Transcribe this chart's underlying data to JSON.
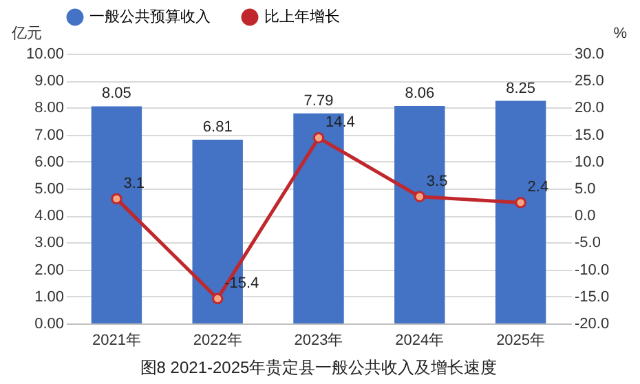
{
  "chart_data": {
    "type": "bar",
    "title": "图8 2021-2025年贵定县一般公共收入及增长速度",
    "ylabel": "亿元",
    "y2label": "%",
    "categories": [
      "2021年",
      "2022年",
      "2023年",
      "2024年",
      "2025年"
    ],
    "series": [
      {
        "name": "一般公共预算收入",
        "color": "#4472c4",
        "values": [
          8.05,
          6.81,
          7.79,
          8.06,
          8.25
        ]
      },
      {
        "name": "比上年增长",
        "type": "line",
        "axis": "y2",
        "color": "#c0282d",
        "marker": "circle",
        "values": [
          3.1,
          -15.4,
          14.4,
          3.5,
          2.4
        ]
      }
    ],
    "ylim": [
      0,
      10
    ],
    "yticks": [
      {
        "value": 0,
        "label": "0.00"
      },
      {
        "value": 1,
        "label": "1.00"
      },
      {
        "value": 2,
        "label": "2.00"
      },
      {
        "value": 3,
        "label": "3.00"
      },
      {
        "value": 4,
        "label": "4.00"
      },
      {
        "value": 5,
        "label": "5.00"
      },
      {
        "value": 6,
        "label": "6.00"
      },
      {
        "value": 7,
        "label": "7.00"
      },
      {
        "value": 8,
        "label": "8.00"
      },
      {
        "value": 9,
        "label": "9.00"
      },
      {
        "value": 10,
        "label": "10.00"
      }
    ],
    "y2lim": [
      -20,
      30
    ],
    "y2ticks": [
      {
        "value": -20,
        "label": "-20.0"
      },
      {
        "value": -15,
        "label": "-15.0"
      },
      {
        "value": -10,
        "label": "-10.0"
      },
      {
        "value": -5,
        "label": "-5.0"
      },
      {
        "value": 0,
        "label": "0.0"
      },
      {
        "value": 5,
        "label": "5.0"
      },
      {
        "value": 10,
        "label": "10.0"
      },
      {
        "value": 15,
        "label": "15.0"
      },
      {
        "value": 20,
        "label": "20.0"
      },
      {
        "value": 25,
        "label": "25.0"
      },
      {
        "value": 30,
        "label": "30.0"
      }
    ],
    "grid": "y",
    "legend": "top",
    "data_labels": true
  }
}
